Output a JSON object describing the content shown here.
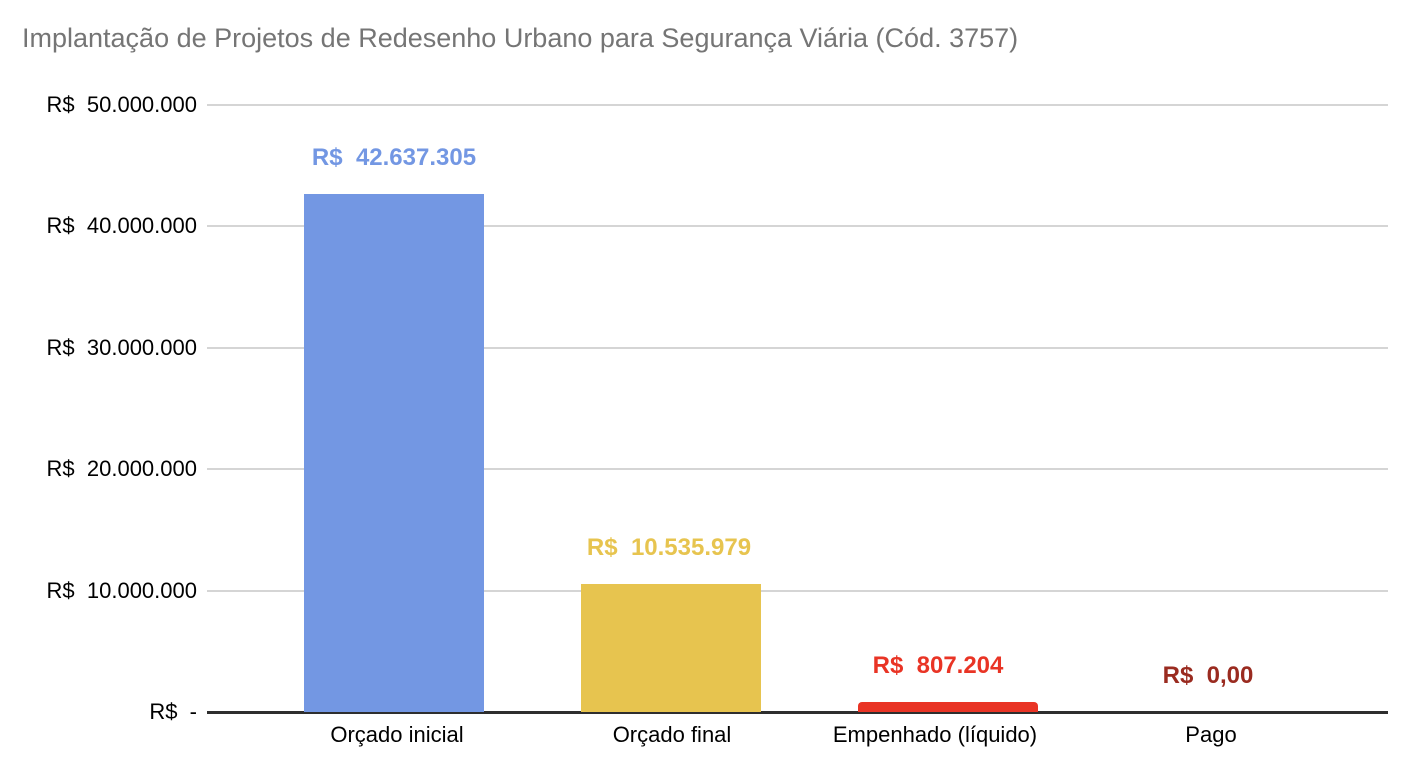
{
  "chart_data": {
    "type": "bar",
    "title": "Implantação de Projetos de Redesenho Urbano para Segurança Viária (Cód. 3757)",
    "currency": "R$",
    "categories": [
      "Orçado inicial",
      "Orçado final",
      "Empenhado (líquido)",
      "Pago"
    ],
    "values": [
      42637305,
      10535979,
      807204,
      0
    ],
    "value_labels": [
      "R$  42.637.305",
      "R$  10.535.979",
      "R$  807.204",
      "R$  0,00"
    ],
    "bar_colors": [
      "#7397e3",
      "#e7c44f",
      "#e93425",
      "#9a2b20"
    ],
    "label_colors": [
      "#7397e3",
      "#e7c44f",
      "#e93425",
      "#9a2b20"
    ],
    "xlabel": "",
    "ylabel": "",
    "ylim": [
      0,
      50000000
    ],
    "y_tick_values": [
      50000000,
      40000000,
      30000000,
      20000000,
      10000000,
      0
    ],
    "y_tick_labels": [
      "R$  50.000.000",
      "R$  40.000.000",
      "R$  30.000.000",
      "R$  20.000.000",
      "R$  10.000.000",
      "R$  -"
    ],
    "grid": true,
    "legend_position": "none",
    "colors": {
      "title_text": "#757575",
      "axis_text": "#000000",
      "gridline": "#d5d5d5",
      "baseline": "#2e2e2e",
      "background": "#ffffff"
    }
  }
}
